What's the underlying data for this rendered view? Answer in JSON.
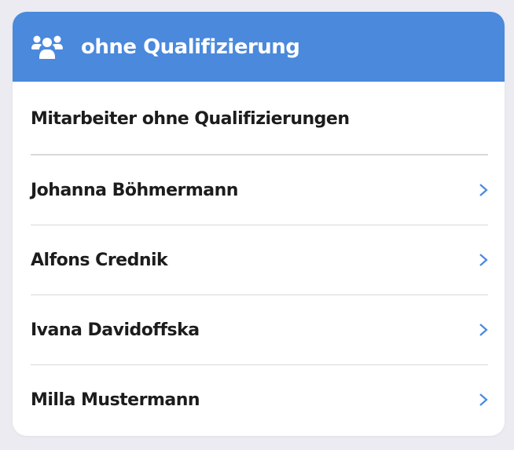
{
  "header": {
    "title": "ohne Qualifizierung",
    "icon": "users-icon",
    "color": "#4a89dc"
  },
  "section": {
    "title": "Mitarbeiter ohne Qualifizierungen"
  },
  "employees": [
    {
      "name": "Johanna Böhmermann"
    },
    {
      "name": "Alfons Crednik"
    },
    {
      "name": "Ivana Davidoffska"
    },
    {
      "name": "Milla Mustermann"
    }
  ]
}
